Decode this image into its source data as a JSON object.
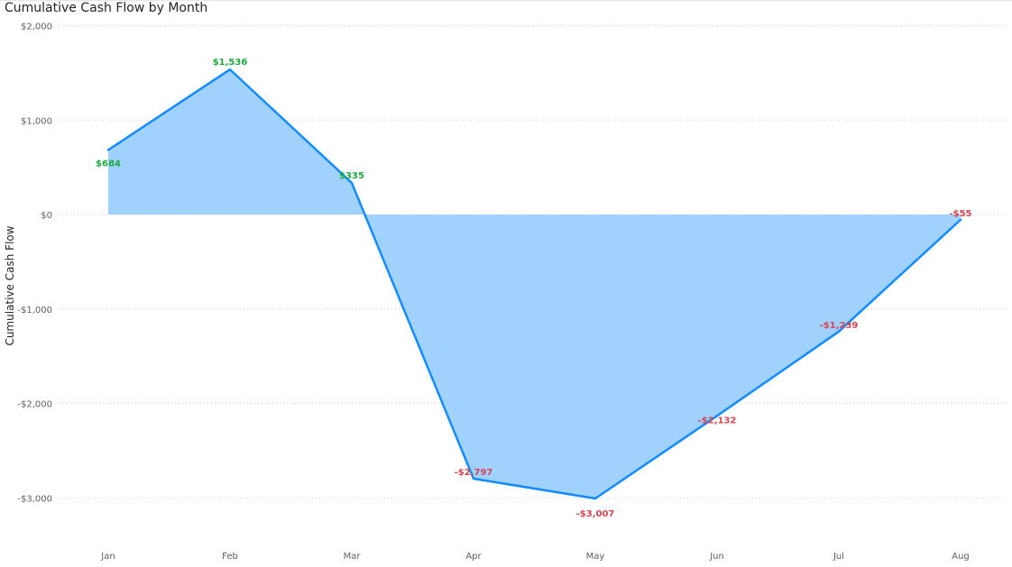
{
  "chart_data": {
    "type": "area",
    "title": "Cumulative Cash Flow by Month",
    "xlabel": "",
    "ylabel": "Cumulative Cash Flow",
    "categories": [
      "Jan",
      "Feb",
      "Mar",
      "Apr",
      "May",
      "Jun",
      "Jul",
      "Aug"
    ],
    "series": [
      {
        "values": [
          684,
          1536,
          335,
          -2797,
          -3007,
          -2132,
          -1239,
          -55
        ],
        "data_labels": [
          "$684",
          "$1,536",
          "$335",
          "-$2,797",
          "-$3,007",
          "-$2,132",
          "-$1,239",
          "-$55"
        ]
      }
    ],
    "y_ticks": [
      2000,
      1000,
      0,
      -1000,
      -2000,
      -3000
    ],
    "y_tick_labels": [
      "$2,000",
      "$1,000",
      "$0",
      "-$1,000",
      "-$2,000",
      "-$3,000"
    ],
    "ylim": [
      -3300,
      2000
    ],
    "grid": true,
    "legend": "none",
    "colors": {
      "line": "#118dff",
      "fill": "#a0d1ff",
      "positive_label": "#1aab40",
      "negative_label": "#d64550"
    }
  }
}
